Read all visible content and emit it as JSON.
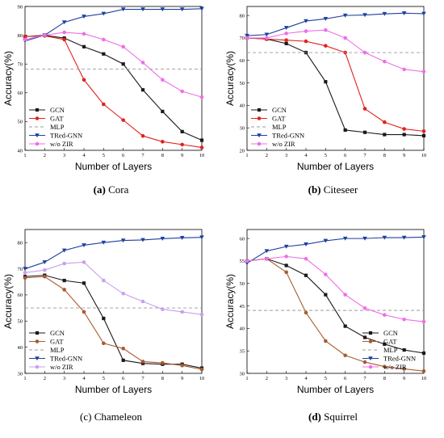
{
  "captions": [
    {
      "label": "(a)",
      "name": "Cora"
    },
    {
      "label": "(b)",
      "name": "Citeseer"
    },
    {
      "label": "(c)",
      "name": "Chameleon"
    },
    {
      "label": "(d)",
      "name": "Squirrel"
    }
  ],
  "colors": {
    "GCN": "#1a1a1a",
    "GAT_red": "#e0221e",
    "GAT_brown": "#a85b30",
    "MLP": "#9b9b9b",
    "TRed-GNN": "#1f3f9e",
    "w/o ZIR_pink": "#ef6fe6",
    "w/o ZIR_lilac": "#c9a0ee"
  },
  "chart_data": [
    {
      "type": "line",
      "xlabel": "Number of Layers",
      "ylabel": "Accuracy(%)",
      "x": [
        1,
        2,
        3,
        4,
        5,
        6,
        7,
        8,
        9,
        10
      ],
      "xlim": [
        1,
        10
      ],
      "ylim": [
        40,
        90
      ],
      "yticks": [
        40,
        50,
        60,
        70,
        80,
        90
      ],
      "grid": false,
      "legend": "bottom-left",
      "series": [
        {
          "name": "GCN",
          "style": "solid",
          "marker": "square",
          "color": "#1a1a1a",
          "values": [
            79.5,
            80.0,
            79.0,
            76.0,
            73.5,
            70.0,
            61.0,
            53.5,
            46.5,
            43.5
          ]
        },
        {
          "name": "GAT",
          "style": "solid",
          "marker": "dot",
          "color": "#e0221e",
          "values": [
            79.5,
            79.8,
            78.5,
            64.5,
            56.0,
            50.5,
            45.0,
            43.0,
            42.0,
            41.0
          ]
        },
        {
          "name": "MLP",
          "style": "dashed",
          "marker": "none",
          "color": "#9b9b9b",
          "values": [
            68.2,
            68.2,
            68.2,
            68.2,
            68.2,
            68.2,
            68.2,
            68.2,
            68.2,
            68.2
          ]
        },
        {
          "name": "TRed-GNN",
          "style": "solid",
          "marker": "triangle-down",
          "color": "#1f3f9e",
          "values": [
            78.0,
            80.0,
            84.5,
            86.5,
            87.5,
            89.0,
            89.0,
            89.0,
            89.0,
            89.2
          ]
        },
        {
          "name": "w/o ZIR",
          "style": "solid",
          "marker": "dot",
          "color": "#ef6fe6",
          "values": [
            78.5,
            80.0,
            81.0,
            80.5,
            78.5,
            76.0,
            70.5,
            64.5,
            60.5,
            58.5
          ]
        }
      ]
    },
    {
      "type": "line",
      "xlabel": "Number of Layers",
      "ylabel": "Accuracy(%)",
      "x": [
        1,
        2,
        3,
        4,
        5,
        6,
        7,
        8,
        9,
        10
      ],
      "xlim": [
        1,
        10
      ],
      "ylim": [
        20,
        84
      ],
      "yticks": [
        20,
        30,
        40,
        50,
        60,
        70,
        80
      ],
      "grid": false,
      "legend": "bottom-left",
      "series": [
        {
          "name": "GCN",
          "style": "solid",
          "marker": "square",
          "color": "#1a1a1a",
          "values": [
            70.0,
            69.5,
            67.5,
            63.5,
            50.5,
            29.0,
            28.0,
            27.0,
            27.0,
            26.5
          ]
        },
        {
          "name": "GAT",
          "style": "solid",
          "marker": "dot",
          "color": "#e0221e",
          "values": [
            70.0,
            69.5,
            69.0,
            68.5,
            66.5,
            63.5,
            38.5,
            32.5,
            29.5,
            28.5
          ]
        },
        {
          "name": "MLP",
          "style": "dashed",
          "marker": "none",
          "color": "#9b9b9b",
          "values": [
            63.5,
            63.5,
            63.5,
            63.5,
            63.5,
            63.5,
            63.5,
            63.5,
            63.5,
            63.5
          ]
        },
        {
          "name": "TRed-GNN",
          "style": "solid",
          "marker": "triangle-down",
          "color": "#1f3f9e",
          "values": [
            71.0,
            71.5,
            74.5,
            77.5,
            78.5,
            80.0,
            80.2,
            80.7,
            81.0,
            80.8
          ]
        },
        {
          "name": "w/o ZIR",
          "style": "solid",
          "marker": "dot",
          "color": "#ef6fe6",
          "values": [
            70.0,
            70.0,
            72.0,
            73.0,
            73.5,
            70.0,
            63.5,
            59.5,
            56.0,
            55.0
          ]
        }
      ]
    },
    {
      "type": "line",
      "xlabel": "Number of Layers",
      "ylabel": "Accuracy(%)",
      "x": [
        1,
        2,
        3,
        4,
        5,
        6,
        7,
        8,
        9,
        10
      ],
      "xlim": [
        1,
        10
      ],
      "ylim": [
        30,
        85
      ],
      "yticks": [
        30,
        40,
        50,
        60,
        70,
        80
      ],
      "grid": false,
      "legend": "bottom-left",
      "series": [
        {
          "name": "GCN",
          "style": "solid",
          "marker": "square",
          "color": "#1a1a1a",
          "values": [
            67.0,
            67.5,
            65.5,
            64.5,
            51.0,
            35.0,
            33.8,
            33.5,
            33.5,
            32.0
          ]
        },
        {
          "name": "GAT",
          "style": "solid",
          "marker": "dot",
          "color": "#a85b30",
          "values": [
            66.5,
            67.0,
            62.0,
            53.5,
            41.5,
            39.5,
            34.5,
            34.0,
            33.0,
            31.5
          ]
        },
        {
          "name": "MLP",
          "style": "dashed",
          "marker": "none",
          "color": "#9b9b9b",
          "values": [
            55.0,
            55.0,
            55.0,
            55.0,
            55.0,
            55.0,
            55.0,
            55.0,
            55.0,
            55.0
          ]
        },
        {
          "name": "TRed-GNN",
          "style": "solid",
          "marker": "triangle-down",
          "color": "#1f3f9e",
          "values": [
            70.0,
            72.5,
            77.0,
            79.0,
            80.0,
            80.8,
            81.0,
            81.5,
            81.8,
            82.0
          ]
        },
        {
          "name": "w/o ZIR",
          "style": "solid",
          "marker": "dot",
          "color": "#c9a0ee",
          "values": [
            68.5,
            69.5,
            72.0,
            72.5,
            65.5,
            60.5,
            57.5,
            54.5,
            53.5,
            52.5
          ]
        }
      ]
    },
    {
      "type": "line",
      "xlabel": "Number of Layers",
      "ylabel": "Accuracy(%)",
      "x": [
        1,
        2,
        3,
        4,
        5,
        6,
        7,
        8,
        9,
        10
      ],
      "xlim": [
        1,
        10
      ],
      "ylim": [
        30,
        62
      ],
      "yticks": [
        30,
        35,
        40,
        45,
        50,
        55,
        60
      ],
      "grid": false,
      "legend": "bottom-right",
      "series": [
        {
          "name": "GCN",
          "style": "solid",
          "marker": "square",
          "color": "#1a1a1a",
          "values": [
            55.0,
            55.5,
            54.0,
            51.8,
            47.5,
            40.5,
            38.0,
            36.5,
            35.2,
            34.5
          ]
        },
        {
          "name": "GAT",
          "style": "solid",
          "marker": "dot",
          "color": "#a85b30",
          "values": [
            55.0,
            55.5,
            52.5,
            43.5,
            37.2,
            34.0,
            32.5,
            31.5,
            31.0,
            30.5
          ]
        },
        {
          "name": "MLP",
          "style": "dashed",
          "marker": "none",
          "color": "#9b9b9b",
          "values": [
            44.0,
            44.0,
            44.0,
            44.0,
            44.0,
            44.0,
            44.0,
            44.0,
            44.0,
            44.0
          ]
        },
        {
          "name": "TRed-GNN",
          "style": "solid",
          "marker": "triangle-down",
          "color": "#1f3f9e",
          "values": [
            54.5,
            57.2,
            58.2,
            58.7,
            59.5,
            60.0,
            60.0,
            60.2,
            60.2,
            60.3
          ]
        },
        {
          "name": "w/o ZIR",
          "style": "solid",
          "marker": "dot",
          "color": "#ef6fe6",
          "values": [
            55.0,
            55.5,
            56.0,
            55.5,
            52.0,
            47.5,
            44.5,
            43.0,
            42.0,
            41.5
          ]
        }
      ]
    }
  ]
}
